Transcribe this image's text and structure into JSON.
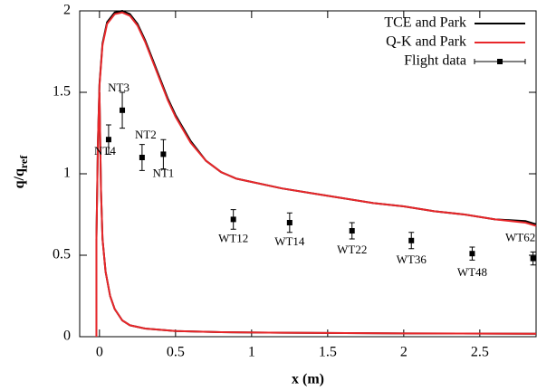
{
  "chart_data": {
    "type": "line",
    "xlabel": "x (m)",
    "ylabel": "q/q",
    "ylabel_sub": "ref",
    "xlim": [
      -0.13,
      2.87
    ],
    "ylim": [
      0,
      2
    ],
    "xticks": [
      0,
      0.5,
      1,
      1.5,
      2,
      2.5
    ],
    "yticks": [
      0,
      0.5,
      1,
      1.5,
      2
    ],
    "grid": false,
    "legend": "upper right",
    "series": [
      {
        "name": "TCE and Park",
        "color": "#000000",
        "type": "line",
        "x": [
          -0.02,
          -0.02,
          -0.01,
          0,
          0.02,
          0.05,
          0.1,
          0.15,
          0.2,
          0.25,
          0.3,
          0.35,
          0.4,
          0.45,
          0.5,
          0.6,
          0.7,
          0.8,
          0.9,
          1.0,
          1.2,
          1.4,
          1.6,
          1.8,
          2.0,
          2.2,
          2.4,
          2.6,
          2.8,
          2.87,
          null,
          0.0,
          0.01,
          0.02,
          0.04,
          0.07,
          0.1,
          0.15,
          0.2,
          0.3,
          0.5,
          0.8,
          1.2,
          2.0,
          2.87
        ],
        "values": [
          0,
          0.6,
          1.2,
          1.55,
          1.8,
          1.93,
          1.99,
          2.0,
          1.98,
          1.92,
          1.82,
          1.7,
          1.58,
          1.46,
          1.36,
          1.2,
          1.08,
          1.01,
          0.97,
          0.95,
          0.91,
          0.88,
          0.85,
          0.82,
          0.8,
          0.77,
          0.75,
          0.72,
          0.71,
          0.69,
          null,
          1.5,
          0.9,
          0.6,
          0.4,
          0.25,
          0.17,
          0.1,
          0.07,
          0.05,
          0.035,
          0.028,
          0.024,
          0.02,
          0.018
        ]
      },
      {
        "name": "Q-K and Park",
        "color": "#e8272a",
        "type": "line",
        "x": [
          -0.02,
          -0.02,
          -0.01,
          0,
          0.02,
          0.05,
          0.1,
          0.15,
          0.2,
          0.25,
          0.3,
          0.35,
          0.4,
          0.45,
          0.5,
          0.6,
          0.7,
          0.8,
          0.9,
          1.0,
          1.2,
          1.4,
          1.6,
          1.8,
          2.0,
          2.2,
          2.4,
          2.6,
          2.8,
          2.87,
          null,
          0.0,
          0.01,
          0.02,
          0.04,
          0.07,
          0.1,
          0.15,
          0.2,
          0.3,
          0.5,
          0.8,
          1.2,
          2.0,
          2.87
        ],
        "values": [
          0,
          0.6,
          1.2,
          1.54,
          1.79,
          1.92,
          1.98,
          1.99,
          1.97,
          1.91,
          1.81,
          1.69,
          1.57,
          1.45,
          1.35,
          1.19,
          1.08,
          1.01,
          0.97,
          0.95,
          0.91,
          0.88,
          0.85,
          0.82,
          0.8,
          0.77,
          0.75,
          0.72,
          0.7,
          0.68,
          null,
          1.5,
          0.9,
          0.6,
          0.4,
          0.25,
          0.17,
          0.1,
          0.07,
          0.05,
          0.035,
          0.028,
          0.024,
          0.02,
          0.018
        ]
      },
      {
        "name": "Flight data",
        "color": "#000000",
        "type": "scatter",
        "x": [
          0.06,
          0.15,
          0.28,
          0.42,
          0.88,
          1.25,
          1.66,
          2.05,
          2.45,
          2.85
        ],
        "values": [
          1.21,
          1.39,
          1.1,
          1.12,
          0.72,
          0.7,
          0.65,
          0.59,
          0.51,
          0.48
        ],
        "errors": [
          0.09,
          0.11,
          0.08,
          0.09,
          0.06,
          0.06,
          0.05,
          0.05,
          0.04,
          0.04
        ],
        "labels": [
          "NT4",
          "NT3",
          "NT2",
          "NT1",
          "WT12",
          "WT14",
          "WT22",
          "WT36",
          "WT48",
          "WT62"
        ]
      }
    ]
  }
}
